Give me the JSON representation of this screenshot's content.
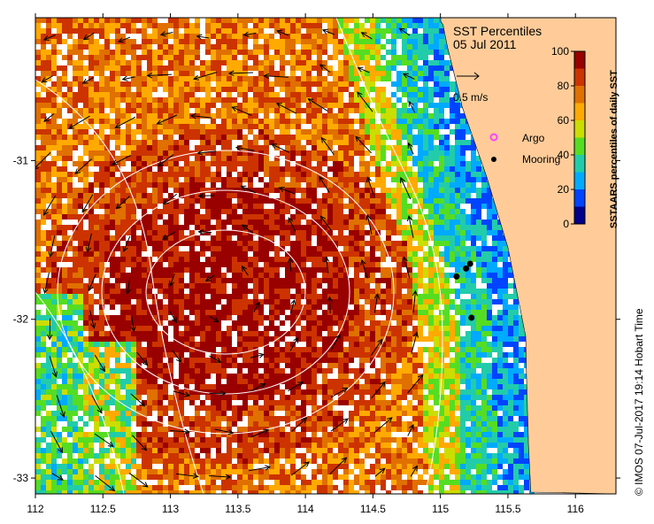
{
  "map": {
    "title": "SST Percentiles",
    "date": "05 Jul 2011",
    "lon_min": 112,
    "lon_max": 116.3,
    "lat_min": -33.1,
    "lat_max": -30.1,
    "x_ticks": [
      "112",
      "112.5",
      "113",
      "113.5",
      "114",
      "114.5",
      "115",
      "115.5",
      "116"
    ],
    "x_tick_values": [
      112,
      112.5,
      113,
      113.5,
      114,
      114.5,
      115,
      115.5,
      116
    ],
    "y_ticks": [
      "-31",
      "-32",
      "-33"
    ],
    "y_tick_values": [
      -31,
      -32,
      -33
    ],
    "land_color": "#ffcc99",
    "missing_color": "#ffffff",
    "moorings": [
      {
        "lon": 115.12,
        "lat": -31.73
      },
      {
        "lon": 115.19,
        "lat": -31.68
      },
      {
        "lon": 115.22,
        "lat": -31.65
      },
      {
        "lon": 115.23,
        "lat": -31.99
      }
    ]
  },
  "legend": {
    "velocity_label": "0.5 m/s",
    "argo_label": "Argo",
    "argo_color": "#ff44ff",
    "mooring_label": "Mooring"
  },
  "colorbar": {
    "title": "SSTAARS percentiles of daily SST",
    "ticks": [
      "0",
      "20",
      "40",
      "60",
      "80",
      "100"
    ],
    "colors": [
      "#000088",
      "#0044ff",
      "#00aaff",
      "#22ccaa",
      "#55dd22",
      "#ccdd00",
      "#ffaa00",
      "#e07000",
      "#cc3300",
      "#990000"
    ]
  },
  "footer": {
    "credit": "© IMOS 07-Jul-2017 19:14 Hobart Time"
  }
}
